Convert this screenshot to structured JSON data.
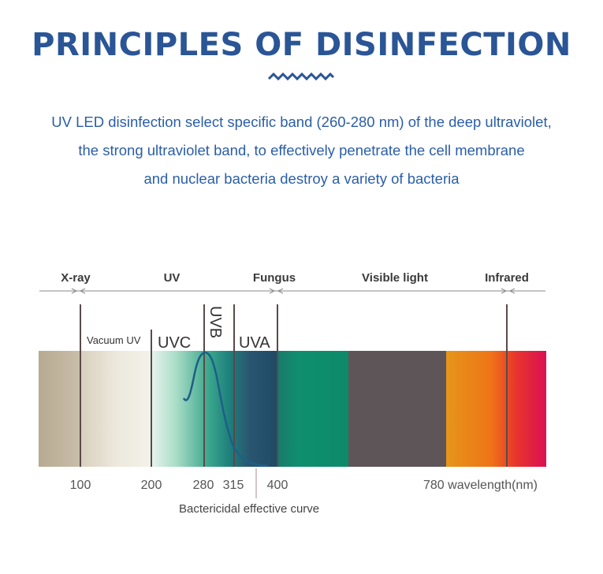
{
  "header": {
    "title": "PRINCIPLES OF DISINFECTION",
    "ornament": "zigzag-wave-icon"
  },
  "intro": {
    "lines": [
      "UV LED disinfection select specific band (260-280 nm) of the deep ultraviolet,",
      "the strong ultraviolet band, to effectively penetrate the cell membrane",
      "and nuclear bacteria destroy a variety of bacteria"
    ]
  },
  "diagram": {
    "top_labels": {
      "xray": "X-ray",
      "uv": "UV",
      "fungus": "Fungus",
      "visible": "Visible light",
      "infrared": "Infrared"
    },
    "band_labels": {
      "vacuum_uv": "Vacuum UV",
      "uvc": "UVC",
      "uvb": "UVB",
      "uva": "UVA"
    },
    "ticks": {
      "t100": "100",
      "t200": "200",
      "t280": "280",
      "t315": "315",
      "t400": "400",
      "t780": "780 wavelength(nm)"
    },
    "curve_label": "Bactericidal effective curve",
    "colors": {
      "title": "#2a5596",
      "intro_text": "#2a5ea8",
      "divider_line": "#5a4a4a",
      "curve": "#1e5f86",
      "xray_band": "#c0b49c",
      "visible_band": "#5e5558",
      "fungus_band": "#0f8e6e"
    }
  }
}
